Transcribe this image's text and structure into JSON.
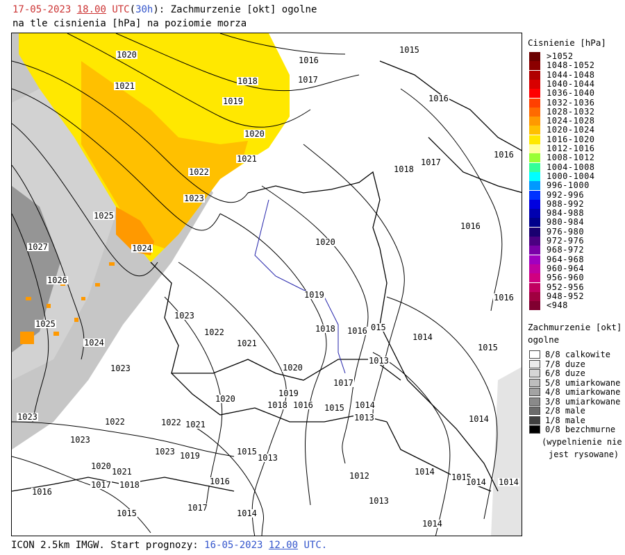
{
  "header": {
    "date": "17-05-2023",
    "hour": "18.00",
    "utc": "UTC",
    "lead_open": "(",
    "lead": "30h",
    "lead_close": ")",
    "title_rest": ": Zachmurzenie [okt] ogolne",
    "line2": "na tle cisnienia [hPa] na poziomie morza"
  },
  "isobar_labels": [
    "1020",
    "1016",
    "1015",
    "1021",
    "1018",
    "1017",
    "1019",
    "1016",
    "1020",
    "1021",
    "1018",
    "1017",
    "1016",
    "1022",
    "1023",
    "1025",
    "1016",
    "1027",
    "1024",
    "1020",
    "1026",
    "1019",
    "1016",
    "1023",
    "1025",
    "1024",
    "1022",
    "1021",
    "1018",
    "1016",
    "015",
    "1014",
    "1015",
    "1023",
    "1020",
    "1013",
    "1017",
    "1020",
    "1019",
    "1018",
    "1016",
    "1015",
    "1014",
    "1023",
    "1022",
    "1022",
    "1021",
    "1013",
    "1014",
    "1023",
    "1023",
    "1019",
    "1015",
    "1013",
    "1014",
    "1020",
    "1021",
    "1018",
    "1017",
    "1016",
    "1016",
    "1012",
    "1015",
    "1014",
    "1014",
    "1017",
    "1014",
    "1015",
    "1013",
    "1014"
  ],
  "legend_pressure": {
    "title": "Cisnienie [hPa]",
    "items": [
      {
        "label": ">1052",
        "color": "#6b0000"
      },
      {
        "label": "1048-1052",
        "color": "#8b0000"
      },
      {
        "label": "1044-1048",
        "color": "#b00000"
      },
      {
        "label": "1040-1044",
        "color": "#d80000"
      },
      {
        "label": "1036-1040",
        "color": "#ff0000"
      },
      {
        "label": "1032-1036",
        "color": "#ff4000"
      },
      {
        "label": "1028-1032",
        "color": "#ff6a00"
      },
      {
        "label": "1024-1028",
        "color": "#ff9900"
      },
      {
        "label": "1020-1024",
        "color": "#ffc000"
      },
      {
        "label": "1016-1020",
        "color": "#ffe800"
      },
      {
        "label": "1012-1016",
        "color": "#ffff99"
      },
      {
        "label": "1008-1012",
        "color": "#99ff33"
      },
      {
        "label": "1004-1008",
        "color": "#33ff99"
      },
      {
        "label": "1000-1004",
        "color": "#00ffff"
      },
      {
        "label": "996-1000",
        "color": "#0099ff"
      },
      {
        "label": "992-996",
        "color": "#0033ff"
      },
      {
        "label": "988-992",
        "color": "#0000e0"
      },
      {
        "label": "984-988",
        "color": "#0000b0"
      },
      {
        "label": "980-984",
        "color": "#00008b"
      },
      {
        "label": "976-980",
        "color": "#1a0070"
      },
      {
        "label": "972-976",
        "color": "#4b0082"
      },
      {
        "label": "968-972",
        "color": "#7a00a8"
      },
      {
        "label": "964-968",
        "color": "#a000c0"
      },
      {
        "label": "960-964",
        "color": "#c000a0"
      },
      {
        "label": "956-960",
        "color": "#d00080"
      },
      {
        "label": "952-956",
        "color": "#c00060"
      },
      {
        "label": "948-952",
        "color": "#a00040"
      },
      {
        "label": "<948",
        "color": "#800030"
      }
    ]
  },
  "legend_cloud": {
    "title_line1": "Zachmurzenie [okt]",
    "title_line2": "ogolne",
    "items": [
      {
        "label": "8/8 calkowite",
        "color": "#ffffff"
      },
      {
        "label": "7/8 duze",
        "color": "#ececec"
      },
      {
        "label": "6/8 duze",
        "color": "#d6d6d6"
      },
      {
        "label": "5/8 umiarkowane",
        "color": "#bdbdbd"
      },
      {
        "label": "4/8 umiarkowane",
        "color": "#a3a3a3"
      },
      {
        "label": "3/8 umiarkowane",
        "color": "#8a8a8a"
      },
      {
        "label": "2/8 male",
        "color": "#6b6b6b"
      },
      {
        "label": "1/8 male",
        "color": "#404040"
      },
      {
        "label": "0/8 bezchmurne",
        "color": "#000000"
      }
    ],
    "note_line1": "(wypelnienie nie",
    "note_line2": "jest rysowane)"
  },
  "footer": {
    "prefix": "ICON 2.5km IMGW. Start prognozy: ",
    "date": "16-05-2023",
    "hour": "12.00",
    "utc": "UTC."
  }
}
